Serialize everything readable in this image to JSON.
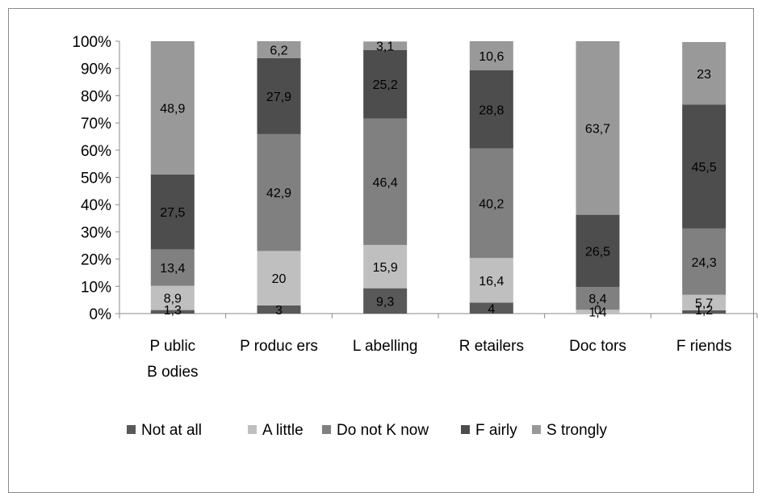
{
  "chart_data": {
    "type": "bar",
    "stacked": true,
    "percent_stacked": true,
    "categories": [
      "Public Bodies",
      "Producers",
      "Labelling",
      "Retailers",
      "Doctors",
      "Friends"
    ],
    "category_display_lines": [
      [
        "P ublic",
        "B odies"
      ],
      [
        "P roduc ers"
      ],
      [
        "L abelling"
      ],
      [
        "R etailers"
      ],
      [
        "Doc tors"
      ],
      [
        "F riends"
      ]
    ],
    "series": [
      {
        "name": "Not at all",
        "legend_label": "Not at all",
        "color": "#595959",
        "values": [
          1.3,
          3,
          9.3,
          4,
          0,
          1.2
        ],
        "labels": [
          "1,3",
          "3",
          "9,3",
          "4",
          "0",
          "1,2"
        ]
      },
      {
        "name": "A little",
        "legend_label": "A  little",
        "color": "#bfbfbf",
        "values": [
          8.9,
          20,
          15.9,
          16.4,
          1.4,
          5.7
        ],
        "labels": [
          "8,9",
          "20",
          "15,9",
          "16,4",
          "1,4",
          "5,7"
        ]
      },
      {
        "name": "Do not Know",
        "legend_label": "Do not K now",
        "color": "#808080",
        "values": [
          13.4,
          42.9,
          46.4,
          40.2,
          8.4,
          24.3
        ],
        "labels": [
          "13,4",
          "42,9",
          "46,4",
          "40,2",
          "8,4",
          "24,3"
        ]
      },
      {
        "name": "Fairly",
        "legend_label": "F airly",
        "color": "#4d4d4d",
        "values": [
          27.5,
          27.9,
          25.2,
          28.8,
          26.5,
          45.5
        ],
        "labels": [
          "27,5",
          "27,9",
          "25,2",
          "28,8",
          "26,5",
          "45,5"
        ]
      },
      {
        "name": "Strongly",
        "legend_label": "S trongly",
        "color": "#999999",
        "values": [
          48.9,
          6.2,
          3.1,
          10.6,
          63.7,
          23
        ],
        "labels": [
          "48,9",
          "6,2",
          "3,1",
          "10,6",
          "63,7",
          "23"
        ]
      }
    ],
    "y_ticks": [
      "0%",
      "10%",
      "20%",
      "30%",
      "40%",
      "50%",
      "60%",
      "70%",
      "80%",
      "90%",
      "100%"
    ],
    "ylim": [
      0,
      100
    ],
    "grid": false,
    "legend": "bottom"
  }
}
